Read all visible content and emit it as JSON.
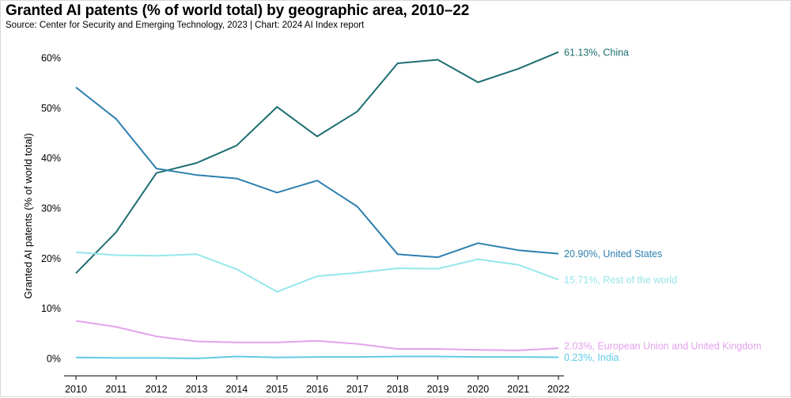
{
  "chart_data": {
    "type": "line",
    "title": "Granted AI patents (% of world total) by geographic area, 2010–22",
    "subtitle": "Source: Center for Security and Emerging Technology, 2023 | Chart: 2024 AI Index report",
    "xlabel": "",
    "ylabel": "Granted AI patents (% of world total)",
    "x": [
      2010,
      2011,
      2012,
      2013,
      2014,
      2015,
      2016,
      2017,
      2018,
      2019,
      2020,
      2021,
      2022
    ],
    "ylim": [
      0,
      60
    ],
    "yticks": [
      0,
      10,
      20,
      30,
      40,
      50,
      60
    ],
    "ytick_labels": [
      "0%",
      "10%",
      "20%",
      "30%",
      "40%",
      "50%",
      "60%"
    ],
    "grid": false,
    "series": [
      {
        "name": "China",
        "color": "#1e6e70",
        "end_label": "61.13%, China",
        "values": [
          17.0,
          25.2,
          37.0,
          39.0,
          42.5,
          50.2,
          44.3,
          49.3,
          58.9,
          59.6,
          55.1,
          57.8,
          61.13
        ]
      },
      {
        "name": "United States",
        "color": "#2c7fb0",
        "end_label": "20.90%, United States",
        "values": [
          54.1,
          47.8,
          37.9,
          36.6,
          35.9,
          33.1,
          35.5,
          30.3,
          20.8,
          20.2,
          23.0,
          21.6,
          20.9
        ]
      },
      {
        "name": "Rest of the world",
        "color": "#95e6ea",
        "end_label": "15.71%, Rest of the world",
        "values": [
          21.2,
          20.6,
          20.5,
          20.8,
          17.8,
          13.3,
          16.4,
          17.1,
          18.0,
          17.9,
          19.8,
          18.7,
          15.71
        ]
      },
      {
        "name": "European Union and United Kingdom",
        "color": "#e3a3ec",
        "end_label": "2.03%, European Union and United Kingdom",
        "values": [
          7.5,
          6.3,
          4.4,
          3.4,
          3.2,
          3.2,
          3.5,
          2.9,
          1.9,
          1.9,
          1.7,
          1.6,
          2.03
        ]
      },
      {
        "name": "India",
        "color": "#62cbe8",
        "end_label": "0.23%, India",
        "values": [
          0.2,
          0.1,
          0.1,
          0.0,
          0.4,
          0.2,
          0.3,
          0.3,
          0.4,
          0.4,
          0.3,
          0.3,
          0.23
        ]
      }
    ]
  }
}
